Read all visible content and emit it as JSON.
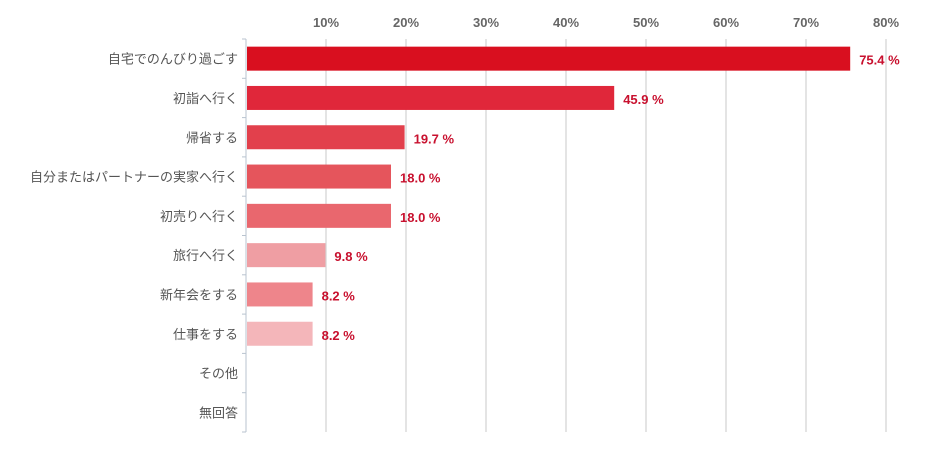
{
  "chart_data": {
    "type": "bar",
    "orientation": "horizontal",
    "categories": [
      "自宅でのんびり過ごす",
      "初詣へ行く",
      "帰省する",
      "自分またはパートナーの実家へ行く",
      "初売りへ行く",
      "旅行へ行く",
      "新年会をする",
      "仕事をする",
      "その他",
      "無回答"
    ],
    "values": [
      75.4,
      45.9,
      19.7,
      18.0,
      18.0,
      9.8,
      8.2,
      8.2,
      null,
      null
    ],
    "value_labels": [
      "75.4 %",
      "45.9 %",
      "19.7 %",
      "18.0 %",
      "18.0 %",
      "9.8 %",
      "8.2 %",
      "8.2 %",
      "",
      ""
    ],
    "bar_colors": [
      "#d90f1f",
      "#e0273a",
      "#e2404c",
      "#e5555c",
      "#e9676e",
      "#ef9ea3",
      "#ee858b",
      "#f4b6ba",
      "#f4b6ba",
      "#f4b6ba"
    ],
    "xlim": [
      0,
      80
    ],
    "ticks": [
      10,
      20,
      30,
      40,
      50,
      60,
      70,
      80
    ],
    "tick_labels": [
      "10%",
      "20%",
      "30%",
      "40%",
      "50%",
      "60%",
      "70%",
      "80%"
    ],
    "axis_position": "top",
    "grid": true,
    "title": "",
    "xlabel": "",
    "ylabel": ""
  }
}
